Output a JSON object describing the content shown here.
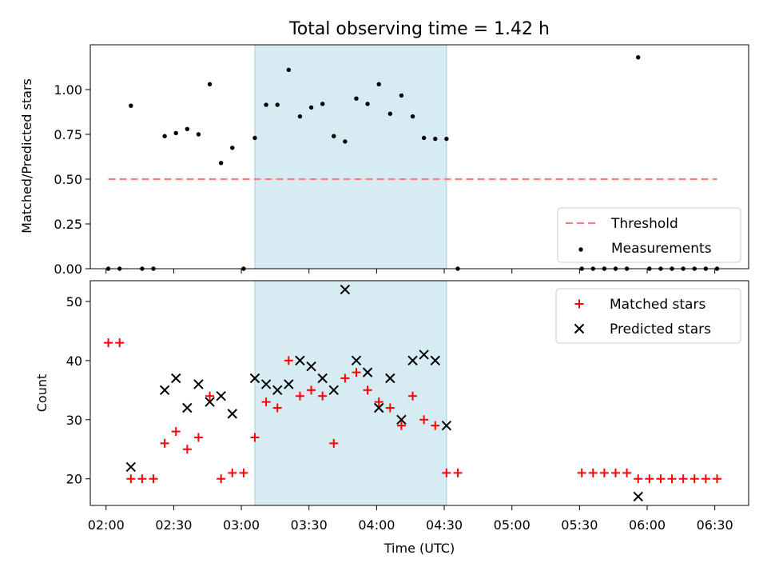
{
  "chart_data": [
    {
      "type": "scatter",
      "title": "Total observing time = 1.42 h",
      "ylabel": "Matched/Predicted stars",
      "xlabel": "",
      "xlim": [
        "01:53",
        "06:45"
      ],
      "ylim": [
        0,
        1.25
      ],
      "yticks": [
        "0.00",
        "0.25",
        "0.50",
        "0.75",
        "1.00"
      ],
      "highlight_span": [
        "03:06",
        "04:31"
      ],
      "legend_position": "lower right",
      "series": [
        {
          "name": "Threshold",
          "kind": "dashed-line",
          "color": "#ff7f7f",
          "x": [
            "02:01",
            "06:31"
          ],
          "values": [
            0.5,
            0.5
          ]
        },
        {
          "name": "Measurements",
          "kind": "points",
          "color": "#000000",
          "x": [
            "02:01",
            "02:06",
            "02:11",
            "02:16",
            "02:21",
            "02:26",
            "02:31",
            "02:36",
            "02:41",
            "02:46",
            "02:51",
            "02:56",
            "03:01",
            "03:06",
            "03:11",
            "03:16",
            "03:21",
            "03:26",
            "03:31",
            "03:36",
            "03:41",
            "03:46",
            "03:51",
            "03:56",
            "04:01",
            "04:06",
            "04:11",
            "04:16",
            "04:21",
            "04:26",
            "04:31",
            "04:36",
            "05:31",
            "05:36",
            "05:41",
            "05:46",
            "05:51",
            "05:56",
            "06:01",
            "06:06",
            "06:11",
            "06:16",
            "06:21",
            "06:26",
            "06:31"
          ],
          "values": [
            0,
            0,
            0.91,
            0,
            0,
            0.74,
            0.757,
            0.78,
            0.75,
            1.03,
            0.59,
            0.675,
            0,
            0.73,
            0.915,
            0.915,
            1.11,
            0.85,
            0.9,
            0.92,
            0.74,
            0.71,
            0.95,
            0.92,
            1.03,
            0.865,
            0.967,
            0.85,
            0.73,
            0.725,
            0.725,
            0,
            0,
            0,
            0,
            0,
            0,
            1.18,
            0,
            0,
            0,
            0,
            0,
            0,
            0
          ]
        }
      ]
    },
    {
      "type": "scatter",
      "title": "",
      "ylabel": "Count",
      "xlabel": "Time (UTC)",
      "xlim": [
        "01:53",
        "06:45"
      ],
      "ylim": [
        15.5,
        53.5
      ],
      "yticks": [
        "20",
        "30",
        "40",
        "50"
      ],
      "xticks": [
        "02:00",
        "02:30",
        "03:00",
        "03:30",
        "04:00",
        "04:30",
        "05:00",
        "05:30",
        "06:00",
        "06:30"
      ],
      "highlight_span": [
        "03:06",
        "04:31"
      ],
      "legend_position": "upper right",
      "series": [
        {
          "name": "Matched stars",
          "kind": "plus",
          "color": "#ff0000",
          "x": [
            "02:01",
            "02:06",
            "02:11",
            "02:16",
            "02:21",
            "02:26",
            "02:31",
            "02:36",
            "02:41",
            "02:46",
            "02:51",
            "02:56",
            "03:01",
            "03:06",
            "03:11",
            "03:16",
            "03:21",
            "03:26",
            "03:31",
            "03:36",
            "03:41",
            "03:46",
            "03:51",
            "03:56",
            "04:01",
            "04:06",
            "04:11",
            "04:16",
            "04:21",
            "04:26",
            "04:31",
            "04:36",
            "05:31",
            "05:36",
            "05:41",
            "05:46",
            "05:51",
            "05:56",
            "06:01",
            "06:06",
            "06:11",
            "06:16",
            "06:21",
            "06:26",
            "06:31"
          ],
          "values": [
            43,
            43,
            20,
            20,
            20,
            26,
            28,
            25,
            27,
            34,
            20,
            21,
            21,
            27,
            33,
            32,
            40,
            34,
            35,
            34,
            26,
            37,
            38,
            35,
            33,
            32,
            29,
            34,
            30,
            29,
            21,
            21,
            21,
            21,
            21,
            21,
            21,
            20,
            20,
            20,
            20,
            20,
            20,
            20,
            20
          ]
        },
        {
          "name": "Predicted stars",
          "kind": "x",
          "color": "#000000",
          "x": [
            "02:11",
            "02:26",
            "02:31",
            "02:36",
            "02:41",
            "02:46",
            "02:51",
            "02:56",
            "03:06",
            "03:11",
            "03:16",
            "03:21",
            "03:26",
            "03:31",
            "03:36",
            "03:41",
            "03:46",
            "03:51",
            "03:56",
            "04:01",
            "04:06",
            "04:11",
            "04:16",
            "04:21",
            "04:26",
            "04:31",
            "05:56"
          ],
          "values": [
            22,
            35,
            37,
            32,
            36,
            33,
            34,
            31,
            37,
            36,
            35,
            36,
            40,
            39,
            37,
            35,
            52,
            40,
            38,
            32,
            37,
            30,
            40,
            41,
            40,
            29,
            17
          ]
        }
      ]
    }
  ]
}
